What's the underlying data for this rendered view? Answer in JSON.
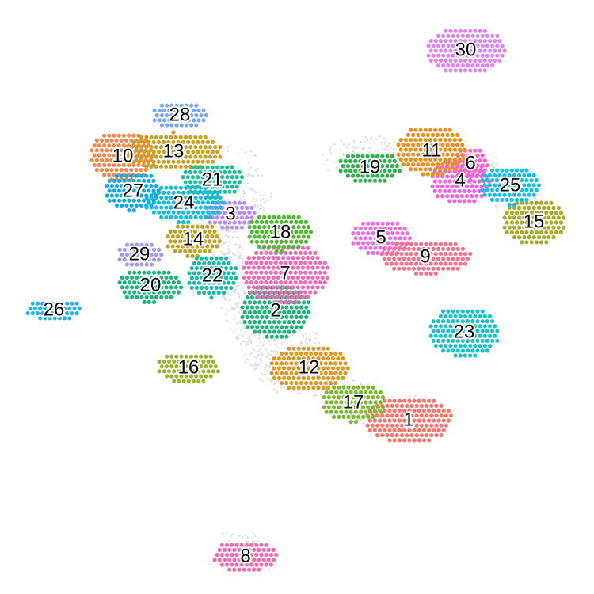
{
  "chart_data": {
    "type": "scatter",
    "title": "",
    "xlabel": "",
    "ylabel": "",
    "grid": false,
    "legend": "none",
    "background_points_color": "#dcdcdc",
    "clusters": [
      {
        "label": "1",
        "color": "#F8766D",
        "center": [
          516,
          530
        ],
        "spread": [
          55,
          30
        ]
      },
      {
        "label": "2",
        "color": "#1FB27A",
        "center": [
          348,
          392
        ],
        "spread": [
          45,
          35
        ]
      },
      {
        "label": "3",
        "color": "#B98BF5",
        "center": [
          291,
          270
        ],
        "spread": [
          32,
          20
        ]
      },
      {
        "label": "4",
        "color": "#F062E8",
        "center": [
          581,
          228
        ],
        "spread": [
          38,
          30
        ]
      },
      {
        "label": "5",
        "color": "#E86FE6",
        "center": [
          481,
          300
        ],
        "spread": [
          38,
          24
        ]
      },
      {
        "label": "6",
        "color": "#FA62C8",
        "center": [
          594,
          206
        ],
        "spread": [
          22,
          22
        ]
      },
      {
        "label": "7",
        "color": "#F06AB9",
        "center": [
          360,
          345
        ],
        "spread": [
          55,
          38
        ]
      },
      {
        "label": "8",
        "color": "#F36BAE",
        "center": [
          310,
          702
        ],
        "spread": [
          42,
          20
        ]
      },
      {
        "label": "9",
        "color": "#F2748B",
        "center": [
          537,
          324
        ],
        "spread": [
          58,
          22
        ]
      },
      {
        "label": "10",
        "color": "#EE8A4F",
        "center": [
          155,
          197
        ],
        "spread": [
          42,
          32
        ]
      },
      {
        "label": "11",
        "color": "#E8901E",
        "center": [
          545,
          190
        ],
        "spread": [
          45,
          32
        ]
      },
      {
        "label": "12",
        "color": "#DA9924",
        "center": [
          390,
          464
        ],
        "spread": [
          50,
          30
        ]
      },
      {
        "label": "13",
        "color": "#C6A227",
        "center": [
          219,
          191
        ],
        "spread": [
          62,
          24
        ]
      },
      {
        "label": "14",
        "color": "#BDA426",
        "center": [
          244,
          302
        ],
        "spread": [
          35,
          22
        ]
      },
      {
        "label": "15",
        "color": "#A9AA28",
        "center": [
          674,
          280
        ],
        "spread": [
          40,
          30
        ]
      },
      {
        "label": "16",
        "color": "#9AB52E",
        "center": [
          238,
          464
        ],
        "spread": [
          40,
          20
        ]
      },
      {
        "label": "17",
        "color": "#7EBA2E",
        "center": [
          446,
          508
        ],
        "spread": [
          40,
          25
        ]
      },
      {
        "label": "18",
        "color": "#52B735",
        "center": [
          354,
          293
        ],
        "spread": [
          42,
          25
        ]
      },
      {
        "label": "19",
        "color": "#30B24E",
        "center": [
          467,
          211
        ],
        "spread": [
          40,
          20
        ]
      },
      {
        "label": "20",
        "color": "#1FB37D",
        "center": [
          190,
          360
        ],
        "spread": [
          42,
          22
        ]
      },
      {
        "label": "21",
        "color": "#1FBE9C",
        "center": [
          268,
          227
        ],
        "spread": [
          40,
          22
        ]
      },
      {
        "label": "22",
        "color": "#1EBAA9",
        "center": [
          268,
          348
        ],
        "spread": [
          32,
          28
        ]
      },
      {
        "label": "23",
        "color": "#1CC2C9",
        "center": [
          586,
          419
        ],
        "spread": [
          45,
          32
        ]
      },
      {
        "label": "24",
        "color": "#17BBD8",
        "center": [
          232,
          256
        ],
        "spread": [
          50,
          25
        ]
      },
      {
        "label": "25",
        "color": "#17C0E0",
        "center": [
          644,
          234
        ],
        "spread": [
          38,
          25
        ]
      },
      {
        "label": "26",
        "color": "#1FB4EC",
        "center": [
          68,
          391
        ],
        "spread": [
          36,
          14
        ]
      },
      {
        "label": "27",
        "color": "#0FA8E8",
        "center": [
          168,
          241
        ],
        "spread": [
          36,
          25
        ]
      },
      {
        "label": "28",
        "color": "#76A8F5",
        "center": [
          227,
          145
        ],
        "spread": [
          35,
          18
        ]
      },
      {
        "label": "29",
        "color": "#A09CF3",
        "center": [
          176,
          321
        ],
        "spread": [
          28,
          18
        ]
      },
      {
        "label": "30",
        "color": "#DD86EE",
        "center": [
          588,
          63
        ],
        "spread": [
          50,
          30
        ]
      }
    ]
  }
}
